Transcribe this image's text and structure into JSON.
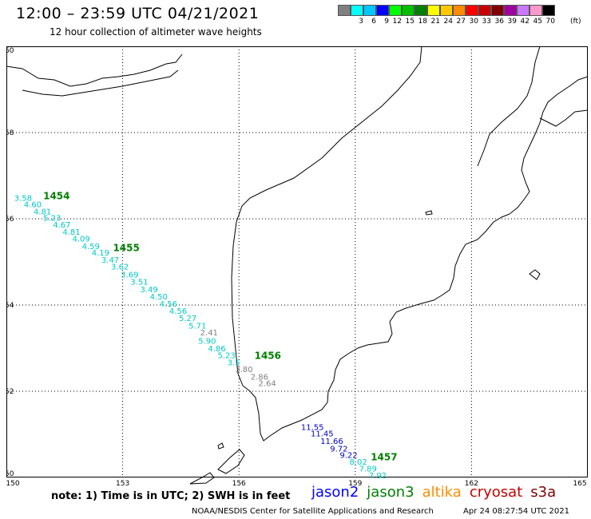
{
  "header": {
    "title": "12:00 – 23:59 UTC 04/21/2021",
    "subtitle": "12 hour collection of altimeter wave heights"
  },
  "scale": {
    "unit": "(ft)",
    "colors": [
      "#808080",
      "#00ffff",
      "#00c8ff",
      "#0000ff",
      "#00ff00",
      "#00c000",
      "#008000",
      "#ffff00",
      "#ffc800",
      "#ff8c00",
      "#ff0000",
      "#c80000",
      "#800000",
      "#a000a0",
      "#c878ff",
      "#ff99cc",
      "#000000"
    ],
    "labels": [
      "",
      "3",
      "6",
      "9",
      "12",
      "15",
      "18",
      "21",
      "24",
      "27",
      "30",
      "33",
      "36",
      "39",
      "42",
      "45",
      "70"
    ]
  },
  "axes": {
    "x_ticks": [
      "150",
      "153",
      "156",
      "159",
      "162",
      "165"
    ],
    "y_ticks": [
      "60",
      "58",
      "56",
      "54",
      "52",
      "50"
    ]
  },
  "chart_data": {
    "type": "scatter",
    "x_range": [
      150,
      165
    ],
    "y_range": [
      50,
      60
    ],
    "grid": true,
    "passes": [
      {
        "label": "1454",
        "lon": 150.95,
        "lat": 56.45,
        "color": "#008000"
      },
      {
        "label": "1455",
        "lon": 152.75,
        "lat": 55.25,
        "color": "#008000"
      },
      {
        "label": "1456",
        "lon": 156.4,
        "lat": 52.75,
        "color": "#008000"
      },
      {
        "label": "1457",
        "lon": 159.4,
        "lat": 50.4,
        "color": "#008000"
      }
    ],
    "points": [
      {
        "v": "3.58",
        "lon": 150.2,
        "lat": 56.42,
        "color": "#00c8c8"
      },
      {
        "v": "4.60",
        "lon": 150.45,
        "lat": 56.27,
        "color": "#00c8c8"
      },
      {
        "v": "4.81",
        "lon": 150.7,
        "lat": 56.1,
        "color": "#00c8c8"
      },
      {
        "v": "5.23",
        "lon": 150.95,
        "lat": 55.95,
        "color": "#00c8c8"
      },
      {
        "v": "4.67",
        "lon": 151.2,
        "lat": 55.8,
        "color": "#00c8c8"
      },
      {
        "v": "4.81",
        "lon": 151.45,
        "lat": 55.63,
        "color": "#00c8c8"
      },
      {
        "v": "4.09",
        "lon": 151.7,
        "lat": 55.47,
        "color": "#00c8c8"
      },
      {
        "v": "4.59",
        "lon": 151.95,
        "lat": 55.3,
        "color": "#00c8c8"
      },
      {
        "v": "4.19",
        "lon": 152.2,
        "lat": 55.15,
        "color": "#00c8c8"
      },
      {
        "v": "3.47",
        "lon": 152.45,
        "lat": 54.98,
        "color": "#00c8c8"
      },
      {
        "v": "3.62",
        "lon": 152.7,
        "lat": 54.82,
        "color": "#00c8c8"
      },
      {
        "v": "3.69",
        "lon": 152.95,
        "lat": 54.64,
        "color": "#00c8c8"
      },
      {
        "v": "3.51",
        "lon": 153.2,
        "lat": 54.47,
        "color": "#00c8c8"
      },
      {
        "v": "3.49",
        "lon": 153.45,
        "lat": 54.3,
        "color": "#00c8c8"
      },
      {
        "v": "4.50",
        "lon": 153.7,
        "lat": 54.13,
        "color": "#00c8c8"
      },
      {
        "v": "4.56",
        "lon": 153.95,
        "lat": 53.96,
        "color": "#00c8c8"
      },
      {
        "v": "4.56",
        "lon": 154.2,
        "lat": 53.8,
        "color": "#00c8c8"
      },
      {
        "v": "5.27",
        "lon": 154.45,
        "lat": 53.63,
        "color": "#00c8c8"
      },
      {
        "v": "5.71",
        "lon": 154.7,
        "lat": 53.45,
        "color": "#00c8c8"
      },
      {
        "v": "2.41",
        "lon": 155.0,
        "lat": 53.3,
        "color": "#808080"
      },
      {
        "v": "5.90",
        "lon": 154.95,
        "lat": 53.1,
        "color": "#00c8c8"
      },
      {
        "v": "4.86",
        "lon": 155.2,
        "lat": 52.93,
        "color": "#00c8c8"
      },
      {
        "v": "5.23",
        "lon": 155.45,
        "lat": 52.77,
        "color": "#00c8c8"
      },
      {
        "v": "3.5",
        "lon": 155.7,
        "lat": 52.6,
        "color": "#00c8c8"
      },
      {
        "v": "3.80",
        "lon": 155.9,
        "lat": 52.44,
        "color": "#808080"
      },
      {
        "v": "2.86",
        "lon": 156.3,
        "lat": 52.27,
        "color": "#808080"
      },
      {
        "v": "2.64",
        "lon": 156.5,
        "lat": 52.12,
        "color": "#808080"
      },
      {
        "v": "11.55",
        "lon": 157.6,
        "lat": 51.1,
        "color": "#0000c8"
      },
      {
        "v": "11.45",
        "lon": 157.85,
        "lat": 50.95,
        "color": "#0000c8"
      },
      {
        "v": "11.66",
        "lon": 158.1,
        "lat": 50.78,
        "color": "#0000c8"
      },
      {
        "v": "9.72",
        "lon": 158.35,
        "lat": 50.6,
        "color": "#0000c8"
      },
      {
        "v": "9.22",
        "lon": 158.6,
        "lat": 50.45,
        "color": "#0000c8"
      },
      {
        "v": "8.02",
        "lon": 158.85,
        "lat": 50.3,
        "color": "#00c8c8"
      },
      {
        "v": "7.89",
        "lon": 159.1,
        "lat": 50.14,
        "color": "#00c8c8"
      },
      {
        "v": "7.92",
        "lon": 159.35,
        "lat": 49.98,
        "color": "#00c8c8"
      }
    ]
  },
  "footer": {
    "note": "note: 1) Time is in UTC; 2) SWH is in feet",
    "sats": [
      {
        "name": "jason2",
        "color": "#0000ff"
      },
      {
        "name": "jason3",
        "color": "#008000"
      },
      {
        "name": "altika",
        "color": "#ff8c00"
      },
      {
        "name": "cryosat",
        "color": "#c80000"
      },
      {
        "name": "s3a",
        "color": "#800000"
      }
    ],
    "credit": "NOAA/NESDIS Center for Satellite Applications and Research",
    "timestamp": "Apr 24 08:27:54 UTC 2021"
  }
}
